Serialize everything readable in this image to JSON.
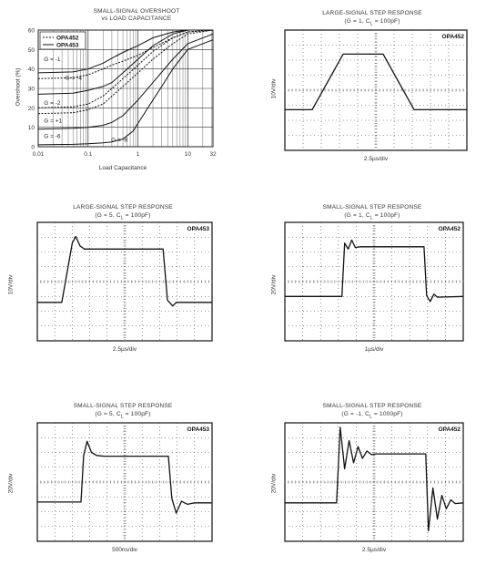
{
  "chart_data": [
    {
      "id": "overshoot",
      "type": "line",
      "title": "SMALL-SIGNAL OVERSHOOT",
      "subtitle": "vs LOAD CAPACITANCE",
      "xlabel": "Load Capacitance",
      "ylabel": "Overshoot (%)",
      "xscale": "log",
      "xlim": [
        0.01,
        32
      ],
      "ylim": [
        0,
        60
      ],
      "xticks": [
        "0.01",
        "0.1",
        "1",
        "10",
        "32"
      ],
      "yticks": [
        "0",
        "10",
        "20",
        "30",
        "40",
        "50",
        "60"
      ],
      "legend": [
        {
          "name": "OPA452",
          "style": "dashed"
        },
        {
          "name": "OPA453",
          "style": "solid"
        }
      ],
      "annotations": [
        "G = -1",
        "G = -4",
        "G = -2",
        "G = +1",
        "G = -6",
        "G = -8"
      ],
      "series": [
        {
          "legend": "OPA452",
          "label": "G = -1",
          "x": [
            0.01,
            0.05,
            0.1,
            0.2,
            0.3,
            0.5,
            1,
            2,
            5,
            10,
            32
          ],
          "y": [
            35,
            35.5,
            37,
            40,
            42,
            44,
            47,
            51,
            56,
            59,
            60
          ]
        },
        {
          "legend": "OPA452",
          "label": "G = +1",
          "x": [
            0.01,
            0.05,
            0.1,
            0.2,
            0.3,
            0.5,
            1,
            2,
            5,
            10,
            32
          ],
          "y": [
            17,
            17.5,
            19,
            22,
            26,
            31,
            38,
            45,
            53,
            58,
            60
          ]
        },
        {
          "legend": "OPA452",
          "label": "G = -2",
          "x": [
            0.01,
            0.05,
            0.1,
            0.2,
            0.3,
            0.5,
            1,
            2,
            5,
            10,
            32
          ],
          "y": [
            20,
            20.5,
            22,
            26,
            30,
            35,
            42,
            49,
            56,
            59,
            60
          ]
        },
        {
          "legend": "OPA453",
          "label": "G = -4",
          "x": [
            0.01,
            0.05,
            0.1,
            0.2,
            0.3,
            0.5,
            1,
            2,
            5,
            10,
            32
          ],
          "y": [
            38,
            38.5,
            40,
            43,
            45.5,
            48.5,
            52,
            56,
            59,
            60,
            60
          ]
        },
        {
          "legend": "OPA453",
          "label": "G = -6",
          "x": [
            0.01,
            0.05,
            0.1,
            0.2,
            0.3,
            0.5,
            1,
            2,
            5,
            10,
            32
          ],
          "y": [
            27,
            27.5,
            29,
            31,
            33,
            38,
            45,
            52,
            58,
            60,
            60
          ]
        },
        {
          "legend": "OPA453",
          "label": "G = -8",
          "x": [
            0.01,
            0.05,
            0.1,
            0.2,
            0.3,
            0.5,
            0.8,
            1,
            2,
            3,
            5,
            10,
            32
          ],
          "y": [
            1,
            1.2,
            1.5,
            2,
            2.5,
            4,
            8,
            12,
            24,
            31,
            40,
            50,
            55
          ]
        },
        {
          "legend": "OPA453",
          "label": "G = -8",
          "x": [
            0.01,
            0.05,
            0.1,
            0.2,
            0.3,
            0.5,
            1,
            2,
            5,
            10,
            32
          ],
          "y": [
            9,
            9.5,
            10,
            11,
            12.5,
            16,
            24,
            33,
            45,
            53,
            58
          ]
        }
      ]
    },
    {
      "id": "ls1",
      "type": "line",
      "title": "LARGE-SIGNAL STEP RESPONSE",
      "subtitle_parts": [
        "(G = 1, C",
        "L",
        " = 100pF)"
      ],
      "device": "OPA452",
      "ylabel": "10V/div",
      "xlabel": "2.5µs/div",
      "grid": {
        "cols": 10,
        "rows": 8
      },
      "xlim": [
        0,
        10
      ],
      "ylim": [
        -4,
        4
      ],
      "x": [
        0,
        1.5,
        3.2,
        5.4,
        7.1,
        8.0,
        10
      ],
      "y": [
        -1.3,
        -1.3,
        2.4,
        2.4,
        -1.3,
        -1.3,
        -1.3
      ]
    },
    {
      "id": "ls2",
      "type": "line",
      "title": "LARGE-SIGNAL STEP RESPONSE",
      "subtitle_parts": [
        "(G = 5, C",
        "L",
        " = 100pF)"
      ],
      "device": "OPA453",
      "ylabel": "10V/div",
      "xlabel": "2.5µs/div",
      "grid": {
        "cols": 10,
        "rows": 8
      },
      "xlim": [
        0,
        10
      ],
      "ylim": [
        -4,
        4
      ],
      "x": [
        0,
        1.4,
        2.0,
        2.2,
        2.45,
        2.7,
        3.0,
        7.2,
        7.45,
        7.75,
        7.95,
        8.2,
        10
      ],
      "y": [
        -1.4,
        -1.4,
        2.6,
        3.05,
        2.4,
        2.2,
        2.2,
        2.2,
        -1.25,
        -1.65,
        -1.4,
        -1.4,
        -1.4
      ]
    },
    {
      "id": "ss1",
      "type": "line",
      "title": "SMALL-SIGNAL STEP RESPONSE",
      "subtitle_parts": [
        "(G = 1, C",
        "L",
        " = 100pF)"
      ],
      "device": "OPA452",
      "ylabel": "20V/div",
      "xlabel": "1µs/div",
      "grid": {
        "cols": 10,
        "rows": 8
      },
      "xlim": [
        0,
        10
      ],
      "ylim": [
        -4,
        4
      ],
      "x": [
        0,
        3.2,
        3.35,
        3.55,
        3.75,
        3.95,
        4.2,
        7.8,
        7.95,
        8.15,
        8.35,
        8.55,
        10
      ],
      "y": [
        -1.0,
        -1.0,
        2.6,
        2.2,
        2.8,
        2.3,
        2.35,
        2.35,
        -0.95,
        -1.35,
        -0.85,
        -1.05,
        -1.0
      ]
    },
    {
      "id": "ss2",
      "type": "line",
      "title": "SMALL-SIGNAL STEP RESPONSE",
      "subtitle_parts": [
        "(G = 5, C",
        "L",
        " = 100pF)"
      ],
      "device": "OPA453",
      "ylabel": "20V/div",
      "xlabel": "500ns/div",
      "grid": {
        "cols": 10,
        "rows": 8
      },
      "xlim": [
        0,
        10
      ],
      "ylim": [
        -4,
        4
      ],
      "x": [
        0,
        2.5,
        2.65,
        2.85,
        3.1,
        3.4,
        3.8,
        7.5,
        7.7,
        7.95,
        8.25,
        8.6,
        9.0,
        10
      ],
      "y": [
        -1.35,
        -1.35,
        1.8,
        2.75,
        2.0,
        1.8,
        1.75,
        1.75,
        -1.1,
        -2.1,
        -1.3,
        -1.5,
        -1.4,
        -1.4
      ]
    },
    {
      "id": "ss3",
      "type": "line",
      "title": "SMALL-SIGNAL STEP RESPONSE",
      "subtitle_parts": [
        "(G = -1, C",
        "L",
        " = 1000pF)"
      ],
      "device": "OPA452",
      "ylabel": "20V/div",
      "xlabel": "2.5µs/div",
      "grid": {
        "cols": 10,
        "rows": 8
      },
      "xlim": [
        0,
        10
      ],
      "ylim": [
        -4,
        4
      ],
      "x": [
        0,
        2.9,
        3.1,
        3.35,
        3.6,
        3.85,
        4.1,
        4.35,
        4.6,
        4.85,
        5.1,
        7.9,
        8.05,
        8.3,
        8.55,
        8.8,
        9.05,
        9.3,
        9.55,
        10
      ],
      "y": [
        -1.4,
        -1.4,
        3.7,
        0.9,
        2.8,
        1.3,
        2.4,
        1.6,
        2.1,
        1.85,
        1.9,
        1.9,
        -3.3,
        -0.4,
        -2.5,
        -0.9,
        -1.8,
        -1.2,
        -1.45,
        -1.4
      ]
    }
  ]
}
